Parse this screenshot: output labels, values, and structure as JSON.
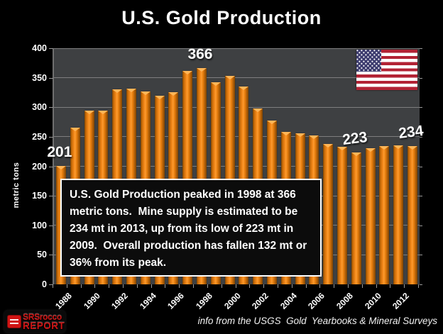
{
  "title": "U.S. Gold Production",
  "y_axis_title": "metric tons",
  "source_note": "info from the USGS  Gold  Yearbooks & Mineral Surveys",
  "annotation_text": "U.S. Gold Production peaked in 1998 at 366 metric tons.  Mine supply is estimated to be 234 mt in 2013, up from its low of 223 mt in 2009.  Overall production has fallen 132 mt or 36% from its peak.",
  "logo": {
    "icon": "srsrocco-logo-icon",
    "line1": "SRSrocco",
    "line2": "REPORT"
  },
  "flag_icon": "us-flag-icon",
  "colors": {
    "background": "#000000",
    "plot_background": "#3E4042",
    "gridline": "#8A8A8A",
    "bar": "#F0830F",
    "bar_highlight": "#FFB658",
    "bar_shadow": "#7E4503",
    "text": "#FFFFFF",
    "flag_red": "#B22234",
    "flag_blue": "#3C3B6E",
    "logo_red": "#D01414"
  },
  "chart_data": {
    "type": "bar",
    "title": "U.S. Gold Production",
    "xlabel": "",
    "ylabel": "metric tons",
    "ylim": [
      0,
      400
    ],
    "y_ticks": [
      0,
      50,
      100,
      150,
      200,
      250,
      300,
      350,
      400
    ],
    "grid": true,
    "legend": false,
    "categories": [
      "1988",
      "1989",
      "1990",
      "1991",
      "1992",
      "1993",
      "1994",
      "1995",
      "1996",
      "1997",
      "1998",
      "1999",
      "2000",
      "2001",
      "2002",
      "2003",
      "2004",
      "2005",
      "2006",
      "2007",
      "2008",
      "2009",
      "2010",
      "2011",
      "2012",
      "2013"
    ],
    "x_tick_labels": [
      "1988",
      "1990",
      "1992",
      "1994",
      "1996",
      "1998",
      "2000",
      "2002",
      "2004",
      "2006",
      "2008",
      "2010",
      "2012"
    ],
    "values": [
      201,
      266,
      294,
      294,
      330,
      331,
      327,
      319,
      326,
      362,
      366,
      342,
      353,
      335,
      298,
      277,
      258,
      256,
      252,
      238,
      233,
      223,
      231,
      234,
      235,
      234
    ],
    "data_labels": [
      {
        "category": "1988",
        "value": 201
      },
      {
        "category": "1998",
        "value": 366
      },
      {
        "category": "2009",
        "value": 223
      },
      {
        "category": "2013",
        "value": 234
      }
    ]
  }
}
